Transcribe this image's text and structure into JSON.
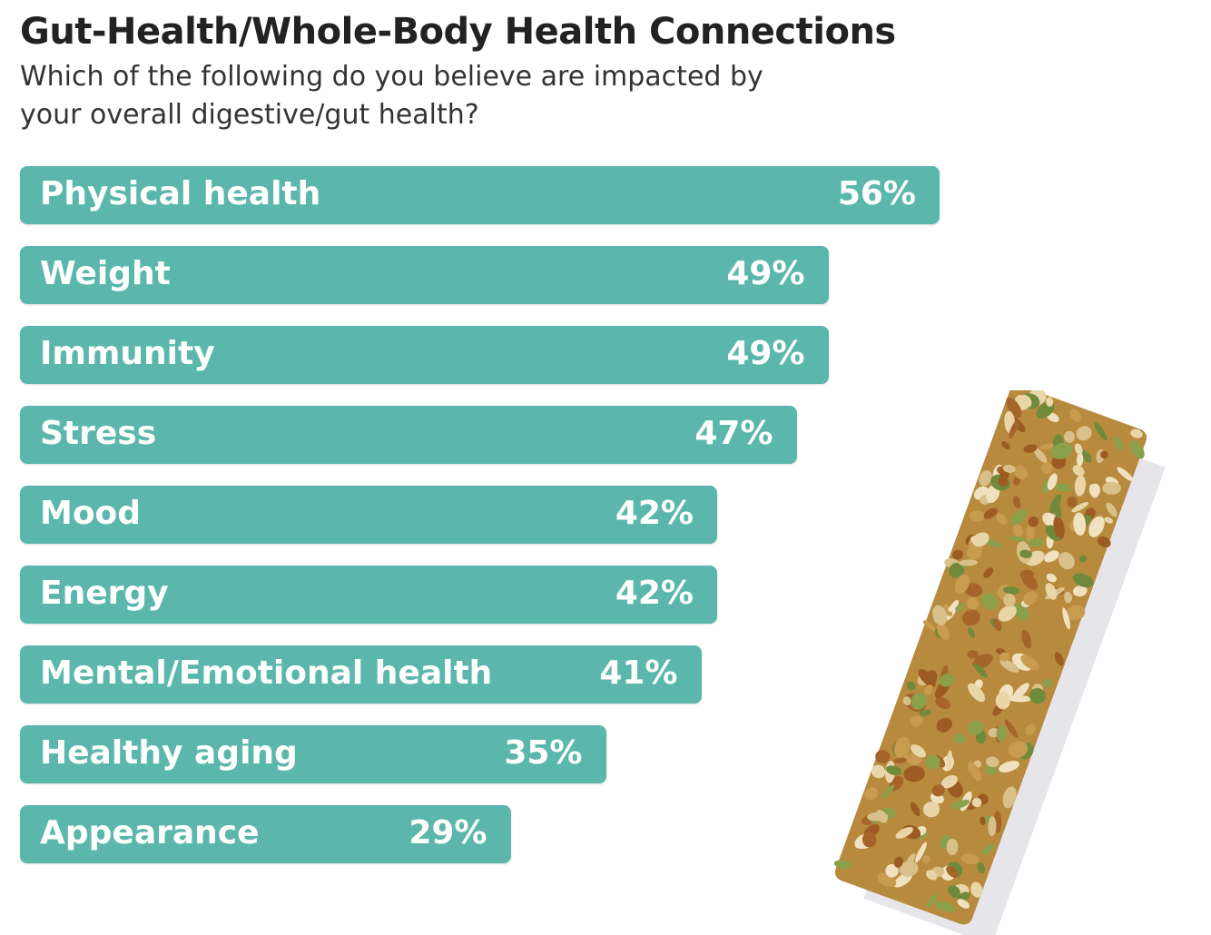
{
  "chart_data": {
    "type": "bar",
    "orientation": "horizontal",
    "title": "Gut-Health/Whole-Body Health Connections",
    "subtitle": "Which  of the following do you believe are impacted by your overall digestive/gut health?",
    "categories": [
      "Physical health",
      "Weight",
      "Immunity",
      "Stress",
      "Mood",
      "Energy",
      "Mental/Emotional health",
      "Healthy aging",
      "Appearance"
    ],
    "values": [
      56,
      49,
      49,
      47,
      42,
      42,
      41,
      35,
      29
    ],
    "value_labels": [
      "56%",
      "49%",
      "49%",
      "47%",
      "42%",
      "42%",
      "41%",
      "35%",
      "29%"
    ],
    "unit": "%",
    "bar_color": "#5bb7ac",
    "grid": false,
    "legend": "none"
  }
}
